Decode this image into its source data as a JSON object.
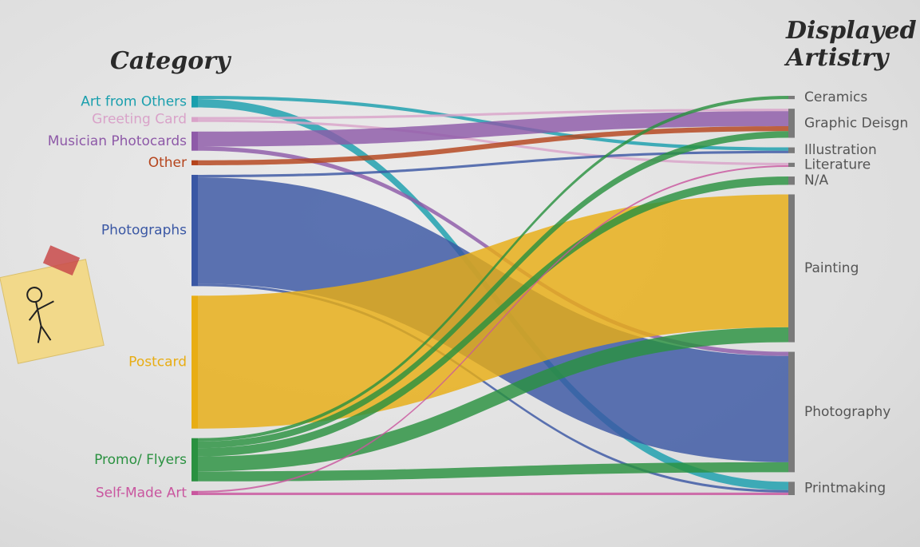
{
  "chart_data": {
    "type": "sankey",
    "source_title": "Category",
    "target_title": "Displayed Artistry",
    "sources": [
      {
        "name": "Art from Others",
        "color": "#1a9fad"
      },
      {
        "name": "Greeting Card",
        "color": "#d9a3c9"
      },
      {
        "name": "Musician Photocards",
        "color": "#8e5aa8"
      },
      {
        "name": "Other",
        "color": "#b5441c"
      },
      {
        "name": "Photographs",
        "color": "#3a57a4"
      },
      {
        "name": "Postcard",
        "color": "#e8ad14"
      },
      {
        "name": "Promo/ Flyers",
        "color": "#2a9140"
      },
      {
        "name": "Self-Made Art",
        "color": "#c9569f"
      }
    ],
    "targets": [
      "Ceramics",
      "Graphic Deisgn",
      "Illustration",
      "Literature",
      "N/A",
      "Painting",
      "Photography",
      "Printmaking"
    ],
    "target_color": "#7a7a7a",
    "target_label_color": "#555555",
    "links": [
      {
        "source": 0,
        "target": 7,
        "value": 10
      },
      {
        "source": 0,
        "target": 2,
        "value": 4
      },
      {
        "source": 1,
        "target": 1,
        "value": 3
      },
      {
        "source": 1,
        "target": 3,
        "value": 3
      },
      {
        "source": 2,
        "target": 1,
        "value": 18
      },
      {
        "source": 2,
        "target": 6,
        "value": 5
      },
      {
        "source": 3,
        "target": 1,
        "value": 6
      },
      {
        "source": 4,
        "target": 2,
        "value": 3
      },
      {
        "source": 4,
        "target": 6,
        "value": 128
      },
      {
        "source": 4,
        "target": 7,
        "value": 3
      },
      {
        "source": 5,
        "target": 5,
        "value": 160
      },
      {
        "source": 6,
        "target": 0,
        "value": 4
      },
      {
        "source": 6,
        "target": 1,
        "value": 8
      },
      {
        "source": 6,
        "target": 4,
        "value": 10
      },
      {
        "source": 6,
        "target": 5,
        "value": 18
      },
      {
        "source": 6,
        "target": 6,
        "value": 12
      },
      {
        "source": 7,
        "target": 3,
        "value": 2
      },
      {
        "source": 7,
        "target": 7,
        "value": 3
      }
    ]
  }
}
